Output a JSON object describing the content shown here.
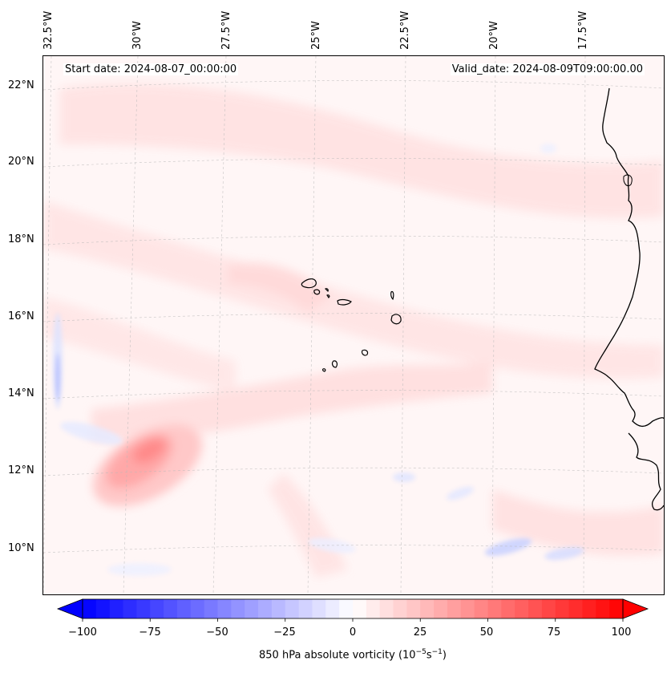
{
  "map": {
    "start_date": "Start date: 2024-08-07_00:00:00",
    "valid_date": "Valid_date: 2024-08-09T09:00:00.00",
    "lon_labels": [
      "32.5°W",
      "30°W",
      "27.5°W",
      "25°W",
      "22.5°W",
      "20°W",
      "17.5°W"
    ],
    "lat_labels": [
      "22°N",
      "20°N",
      "18°N",
      "16°N",
      "14°N",
      "12°N",
      "10°N"
    ],
    "island_group": "Cape Verde",
    "coastline": "West Africa (Mauritania / Senegal / Guinea-Bissau)"
  },
  "colorbar": {
    "ticks": [
      "−100",
      "−75",
      "−50",
      "−25",
      "0",
      "25",
      "50",
      "75",
      "100"
    ],
    "label": "850 hPa absolute vorticity (10",
    "label_exp1": "−5",
    "label_mid": "s",
    "label_exp2": "−1",
    "label_end": ")",
    "cmap": "bwr",
    "colors": {
      "min": "#0000ff",
      "mid": "#ffffff",
      "max": "#ff0000"
    }
  }
}
